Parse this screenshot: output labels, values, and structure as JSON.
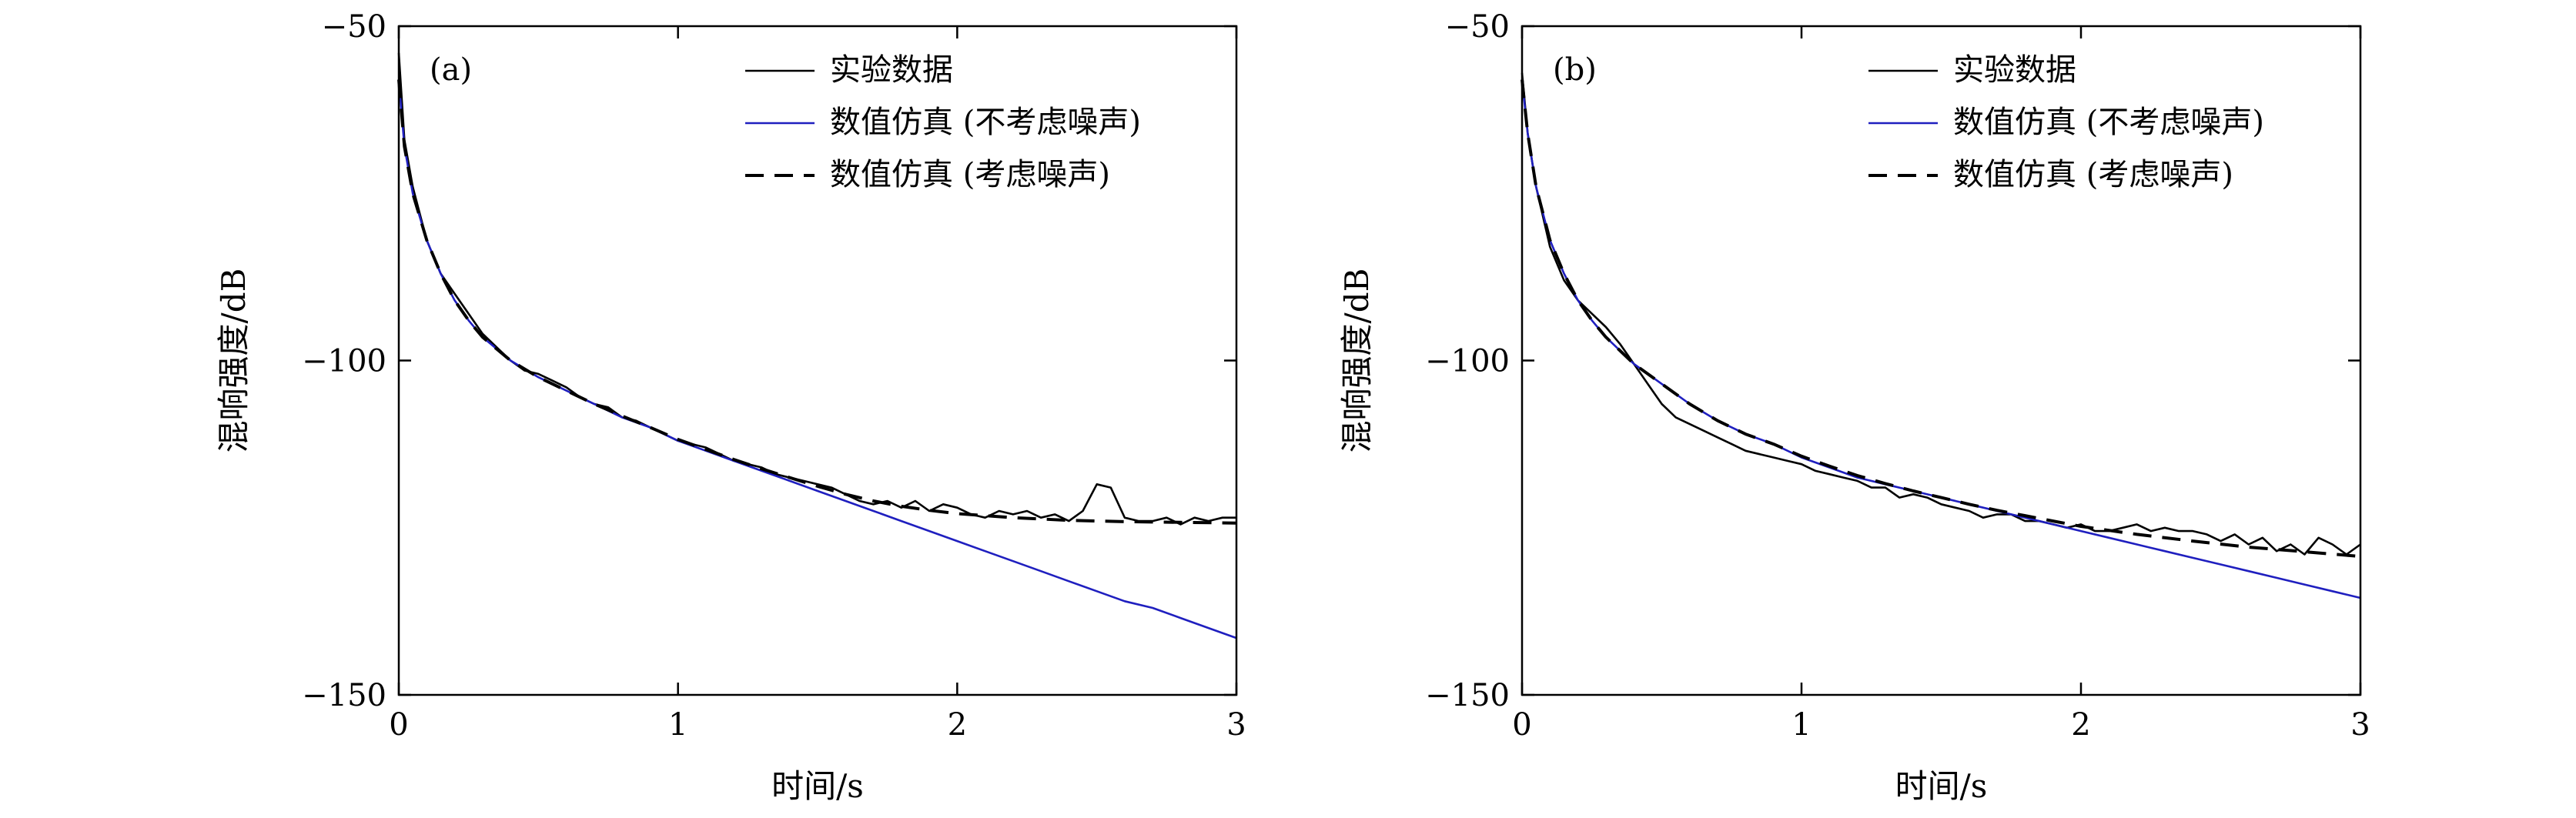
{
  "legend": {
    "experimental": "实验数据",
    "sim_no_noise": "数值仿真 (不考虑噪声)",
    "sim_noise": "数值仿真 (考虑噪声)"
  },
  "colors": {
    "experimental": "#000000",
    "sim_no_noise": "#1f1fbf",
    "sim_noise": "#000000"
  },
  "chart_data": [
    {
      "type": "line",
      "panel_label": "(a)",
      "xlabel": "时间/s",
      "ylabel": "混响强度/dB",
      "xlim": [
        0,
        3
      ],
      "ylim": [
        -150,
        -50
      ],
      "xticks": [
        0,
        1,
        2,
        3
      ],
      "yticks": [
        -50,
        -100,
        -150
      ],
      "tick_labels": {
        "x": [
          "0",
          "1",
          "2",
          "3"
        ],
        "y": [
          "−50",
          "−100",
          "−150"
        ]
      },
      "grid": false,
      "legend_position": "top-right",
      "series": [
        {
          "name": "实验数据",
          "style": "solid",
          "x": [
            0,
            0.02,
            0.05,
            0.1,
            0.15,
            0.2,
            0.25,
            0.3,
            0.35,
            0.4,
            0.45,
            0.5,
            0.55,
            0.6,
            0.65,
            0.7,
            0.75,
            0.8,
            0.85,
            0.9,
            0.95,
            1.0,
            1.05,
            1.1,
            1.15,
            1.2,
            1.25,
            1.3,
            1.35,
            1.4,
            1.45,
            1.5,
            1.55,
            1.6,
            1.65,
            1.7,
            1.75,
            1.8,
            1.85,
            1.9,
            1.95,
            2.0,
            2.05,
            2.1,
            2.15,
            2.2,
            2.25,
            2.3,
            2.35,
            2.4,
            2.45,
            2.5,
            2.55,
            2.6,
            2.65,
            2.7,
            2.75,
            2.8,
            2.85,
            2.9,
            2.95,
            3.0
          ],
          "y": [
            -54,
            -67,
            -74,
            -82,
            -87,
            -90,
            -93,
            -96,
            -98,
            -100,
            -101.5,
            -102,
            -103,
            -104,
            -105.5,
            -106.5,
            -107,
            -108.5,
            -109,
            -110,
            -111,
            -112,
            -112.5,
            -113,
            -114,
            -115,
            -115.5,
            -116,
            -117,
            -117.5,
            -118,
            -118.5,
            -119,
            -120,
            -121,
            -121.5,
            -121,
            -122,
            -121,
            -122.5,
            -121.5,
            -122,
            -123,
            -123.5,
            -122.5,
            -123,
            -122.5,
            -123.5,
            -123,
            -124,
            -122.5,
            -118.5,
            -119,
            -123.5,
            -124,
            -124,
            -123.5,
            -124.5,
            -123.5,
            -124,
            -123.5,
            -123.5
          ]
        },
        {
          "name": "数值仿真 (不考虑噪声)",
          "style": "solid",
          "x": [
            0,
            0.02,
            0.05,
            0.1,
            0.15,
            0.2,
            0.25,
            0.3,
            0.4,
            0.5,
            0.6,
            0.7,
            0.8,
            0.9,
            1.0,
            1.1,
            1.2,
            1.3,
            1.4,
            1.5,
            1.6,
            1.7,
            1.8,
            1.9,
            2.0,
            2.1,
            2.2,
            2.3,
            2.4,
            2.5,
            2.6,
            2.7,
            2.8,
            2.9,
            3.0
          ],
          "y": [
            -58,
            -68,
            -75,
            -82,
            -87,
            -91,
            -94,
            -96.5,
            -100,
            -102.5,
            -104.5,
            -106.5,
            -108.5,
            -110,
            -112,
            -113.5,
            -115,
            -116.5,
            -118,
            -119.5,
            -121,
            -122.5,
            -124,
            -125.5,
            -127,
            -128.5,
            -130,
            -131.5,
            -133,
            -134.5,
            -136,
            -137,
            -138.5,
            -140,
            -141.5
          ]
        },
        {
          "name": "数值仿真 (考虑噪声)",
          "style": "dashed",
          "x": [
            0,
            0.02,
            0.05,
            0.1,
            0.15,
            0.2,
            0.25,
            0.3,
            0.4,
            0.5,
            0.6,
            0.7,
            0.8,
            0.9,
            1.0,
            1.1,
            1.2,
            1.3,
            1.4,
            1.5,
            1.6,
            1.7,
            1.8,
            1.9,
            2.0,
            2.2,
            2.4,
            2.6,
            2.8,
            3.0
          ],
          "y": [
            -58,
            -68,
            -75,
            -82,
            -87,
            -91,
            -94,
            -96.5,
            -100,
            -102.5,
            -104.5,
            -106.5,
            -108.3,
            -110,
            -111.8,
            -113.3,
            -114.8,
            -116.2,
            -117.5,
            -118.8,
            -120,
            -121,
            -121.8,
            -122.4,
            -122.9,
            -123.5,
            -123.9,
            -124.1,
            -124.2,
            -124.3
          ]
        }
      ]
    },
    {
      "type": "line",
      "panel_label": "(b)",
      "xlabel": "时间/s",
      "ylabel": "混响强度/dB",
      "xlim": [
        0,
        3
      ],
      "ylim": [
        -150,
        -50
      ],
      "xticks": [
        0,
        1,
        2,
        3
      ],
      "yticks": [
        -50,
        -100,
        -150
      ],
      "tick_labels": {
        "x": [
          "0",
          "1",
          "2",
          "3"
        ],
        "y": [
          "−50",
          "−100",
          "−150"
        ]
      },
      "grid": false,
      "legend_position": "top-right",
      "series": [
        {
          "name": "实验数据",
          "style": "solid",
          "x": [
            0,
            0.02,
            0.05,
            0.1,
            0.15,
            0.2,
            0.25,
            0.3,
            0.35,
            0.4,
            0.45,
            0.5,
            0.55,
            0.6,
            0.65,
            0.7,
            0.75,
            0.8,
            0.85,
            0.9,
            0.95,
            1.0,
            1.05,
            1.1,
            1.15,
            1.2,
            1.25,
            1.3,
            1.35,
            1.4,
            1.45,
            1.5,
            1.55,
            1.6,
            1.65,
            1.7,
            1.75,
            1.8,
            1.85,
            1.9,
            1.95,
            2.0,
            2.05,
            2.1,
            2.15,
            2.2,
            2.25,
            2.3,
            2.35,
            2.4,
            2.45,
            2.5,
            2.55,
            2.6,
            2.65,
            2.7,
            2.75,
            2.8,
            2.85,
            2.9,
            2.95,
            3.0
          ],
          "y": [
            -57,
            -66,
            -74,
            -83,
            -88,
            -91,
            -93,
            -95,
            -97.5,
            -100.5,
            -103.5,
            -106.5,
            -108.5,
            -109.5,
            -110.5,
            -111.5,
            -112.5,
            -113.5,
            -114,
            -114.5,
            -115,
            -115.5,
            -116.5,
            -117,
            -117.5,
            -118,
            -119,
            -119,
            -120.5,
            -120,
            -120.5,
            -121.5,
            -122,
            -122.5,
            -123.5,
            -123,
            -123,
            -124,
            -124,
            -124.5,
            -125,
            -124.5,
            -125.5,
            -125.5,
            -125,
            -124.5,
            -125.5,
            -125,
            -125.5,
            -125.5,
            -126,
            -127,
            -126,
            -127.5,
            -126.5,
            -128.5,
            -127.5,
            -129,
            -126.5,
            -127.5,
            -129,
            -127.5
          ]
        },
        {
          "name": "数值仿真 (不考虑噪声)",
          "style": "solid",
          "x": [
            0,
            0.02,
            0.05,
            0.1,
            0.15,
            0.2,
            0.25,
            0.3,
            0.4,
            0.5,
            0.6,
            0.7,
            0.8,
            0.9,
            1.0,
            1.1,
            1.2,
            1.3,
            1.4,
            1.5,
            1.6,
            1.7,
            1.8,
            1.9,
            2.0,
            2.1,
            2.2,
            2.3,
            2.4,
            2.5,
            2.6,
            2.7,
            2.8,
            2.9,
            3.0
          ],
          "y": [
            -58,
            -66,
            -74,
            -82,
            -87,
            -91,
            -94,
            -96.5,
            -100.5,
            -103.5,
            -106.5,
            -109,
            -111,
            -112.5,
            -114.5,
            -116,
            -117.5,
            -118.5,
            -119.5,
            -120.5,
            -121.5,
            -122.5,
            -123.5,
            -124.5,
            -125.5,
            -126.5,
            -127.5,
            -128.5,
            -129.5,
            -130.5,
            -131.5,
            -132.5,
            -133.5,
            -134.5,
            -135.5
          ]
        },
        {
          "name": "数值仿真 (考虑噪声)",
          "style": "dashed",
          "x": [
            0,
            0.02,
            0.05,
            0.1,
            0.15,
            0.2,
            0.25,
            0.3,
            0.4,
            0.5,
            0.6,
            0.7,
            0.8,
            0.9,
            1.0,
            1.1,
            1.2,
            1.3,
            1.4,
            1.5,
            1.6,
            1.7,
            1.8,
            1.9,
            2.0,
            2.2,
            2.4,
            2.6,
            2.8,
            3.0
          ],
          "y": [
            -58,
            -66,
            -74,
            -82,
            -87,
            -91,
            -94,
            -96.5,
            -100.5,
            -103.5,
            -106.5,
            -109,
            -111,
            -112.5,
            -114.3,
            -115.8,
            -117.2,
            -118.4,
            -119.5,
            -120.5,
            -121.5,
            -122.4,
            -123.2,
            -124,
            -124.8,
            -126,
            -127,
            -127.9,
            -128.6,
            -129.3
          ]
        }
      ]
    }
  ]
}
